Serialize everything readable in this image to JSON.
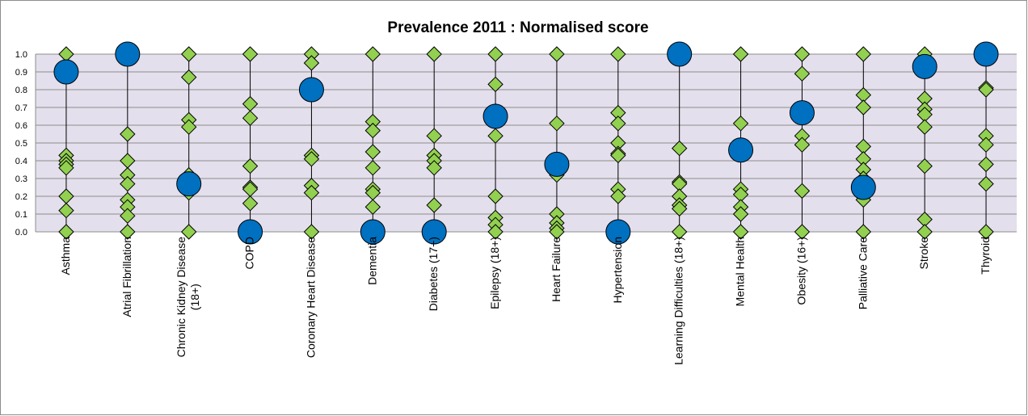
{
  "chart_data": {
    "type": "scatter",
    "title": "Prevalence 2011 : Normalised score",
    "xlabel": "",
    "ylabel": "",
    "ylim": [
      0,
      1.0
    ],
    "yticks": [
      "0.0",
      "0.1",
      "0.2",
      "0.3",
      "0.4",
      "0.5",
      "0.6",
      "0.7",
      "0.8",
      "0.9",
      "1.0"
    ],
    "grid": true,
    "legend": "none",
    "colors": {
      "diamond": "#92d050",
      "circle": "#0070c0",
      "plot_bg": "#e4dfec",
      "line": "#000000"
    },
    "categories": [
      {
        "label": [
          "Asthma"
        ],
        "others": [
          1.0,
          0.43,
          0.4,
          0.38,
          0.36,
          0.2,
          0.12,
          0.0
        ],
        "highlight": 0.9
      },
      {
        "label": [
          "Atrial Fibrillation"
        ],
        "others": [
          1.0,
          0.55,
          0.4,
          0.32,
          0.27,
          0.18,
          0.14,
          0.09,
          0.0
        ],
        "highlight": 1.0
      },
      {
        "label": [
          "Chronic Kidney Disease",
          "(18+)"
        ],
        "others": [
          1.0,
          0.87,
          0.63,
          0.59,
          0.32,
          0.22,
          0.0
        ],
        "highlight": 0.27
      },
      {
        "label": [
          "COPD"
        ],
        "others": [
          1.0,
          0.72,
          0.64,
          0.37,
          0.25,
          0.24,
          0.16
        ],
        "highlight": 0.0
      },
      {
        "label": [
          "Coronary Heart Disease"
        ],
        "others": [
          1.0,
          0.95,
          0.43,
          0.41,
          0.26,
          0.22,
          0.0
        ],
        "highlight": 0.8
      },
      {
        "label": [
          "Dementia"
        ],
        "others": [
          1.0,
          0.62,
          0.57,
          0.45,
          0.36,
          0.24,
          0.22,
          0.14
        ],
        "highlight": 0.0
      },
      {
        "label": [
          "Diabetes (17+)"
        ],
        "others": [
          1.0,
          0.54,
          0.43,
          0.4,
          0.36,
          0.15
        ],
        "highlight": 0.0
      },
      {
        "label": [
          "Epilepsy (18+)"
        ],
        "others": [
          1.0,
          0.83,
          0.68,
          0.54,
          0.2,
          0.08,
          0.04,
          0.0
        ],
        "highlight": 0.65
      },
      {
        "label": [
          "Heart Failure"
        ],
        "others": [
          1.0,
          0.61,
          0.32,
          0.1,
          0.05,
          0.02,
          0.0
        ],
        "highlight": 0.38
      },
      {
        "label": [
          "Hypertension"
        ],
        "others": [
          1.0,
          0.67,
          0.61,
          0.5,
          0.44,
          0.43,
          0.24,
          0.2
        ],
        "highlight": 0.0
      },
      {
        "label": [
          "Learning Difficulties (18+)"
        ],
        "others": [
          0.47,
          0.28,
          0.27,
          0.2,
          0.15,
          0.13,
          0.0
        ],
        "highlight": 1.0
      },
      {
        "label": [
          "Mental Health"
        ],
        "others": [
          1.0,
          0.61,
          0.24,
          0.21,
          0.14,
          0.1,
          0.0
        ],
        "highlight": 0.46
      },
      {
        "label": [
          "Obesity (16+)"
        ],
        "others": [
          1.0,
          0.89,
          0.54,
          0.49,
          0.23,
          0.0
        ],
        "highlight": 0.67
      },
      {
        "label": [
          "Palliative Care"
        ],
        "others": [
          1.0,
          0.77,
          0.7,
          0.48,
          0.41,
          0.35,
          0.3,
          0.18,
          0.0
        ],
        "highlight": 0.25
      },
      {
        "label": [
          "Stroke"
        ],
        "others": [
          1.0,
          0.75,
          0.69,
          0.66,
          0.59,
          0.37,
          0.07,
          0.0
        ],
        "highlight": 0.93
      },
      {
        "label": [
          "Thyroid"
        ],
        "others": [
          0.98,
          0.81,
          0.8,
          0.54,
          0.49,
          0.38,
          0.27,
          0.0
        ],
        "highlight": 1.0
      }
    ]
  }
}
